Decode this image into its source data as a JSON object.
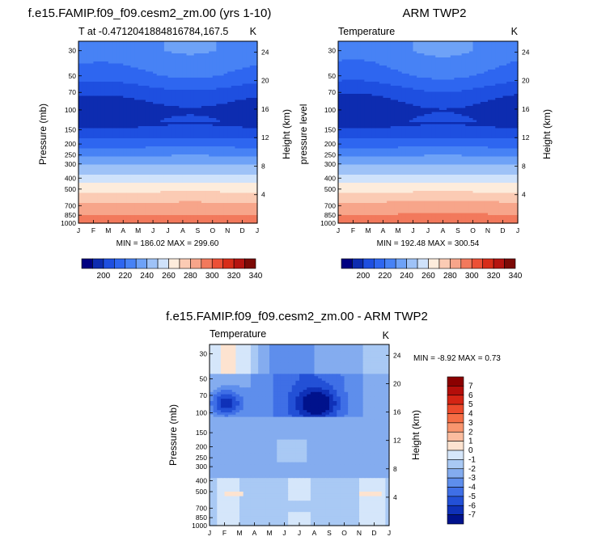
{
  "page": {
    "top_left_title": "f.e15.FAMIP.f09_f09.cesm2_zm.00 (yrs 1-10)",
    "top_right_title": "ARM TWP2",
    "bottom_title": "f.e15.FAMIP.f09_f09.cesm2_zm.00 - ARM TWP2"
  },
  "chart_data": [
    {
      "type": "heatmap",
      "id": "model",
      "subtitle_left": "T at -0.4712041884816784,167.5",
      "units": "K",
      "xlabel": "",
      "ylabel": "Pressure (mb)",
      "ylabel_right": "Height (km)",
      "x_ticks": [
        "J",
        "F",
        "M",
        "A",
        "M",
        "J",
        "J",
        "A",
        "S",
        "O",
        "N",
        "D",
        "J"
      ],
      "y_ticks": [
        30,
        50,
        70,
        100,
        150,
        200,
        250,
        300,
        400,
        500,
        700,
        850,
        1000
      ],
      "y_ticks_right": [
        24,
        20,
        16,
        12,
        8,
        4
      ],
      "stats": "MIN = 186.02 MAX = 299.60",
      "color_levels": [
        190,
        200,
        210,
        220,
        230,
        240,
        250,
        260,
        270,
        280,
        290,
        300,
        310,
        320,
        330,
        340,
        350
      ],
      "colorbar_labels": [
        "200",
        "220",
        "240",
        "260",
        "280",
        "300",
        "320",
        "340"
      ],
      "colorbar_colors": [
        "#000080",
        "#0d2cb0",
        "#1e4fe0",
        "#2e66f0",
        "#4782f5",
        "#6ea2f7",
        "#9ec2f7",
        "#cfe2fb",
        "#fdecdc",
        "#fbcbb4",
        "#f7a58a",
        "#f2795c",
        "#ec5036",
        "#d72d19",
        "#b51410",
        "#7c0a06"
      ],
      "profiles": {
        "pressure": [
          30,
          50,
          70,
          100,
          150,
          200,
          250,
          300,
          400,
          500,
          700,
          850,
          1000
        ],
        "temperature": [
          228,
          218,
          205,
          195,
          201,
          216,
          229,
          239,
          254,
          267,
          283,
          290,
          297
        ]
      }
    },
    {
      "type": "heatmap",
      "id": "obs",
      "subtitle_left": "Temperature",
      "units": "K",
      "ylabel": "pressure level",
      "ylabel_right": "Height (km)",
      "x_ticks": [
        "J",
        "F",
        "M",
        "A",
        "M",
        "J",
        "J",
        "A",
        "S",
        "O",
        "N",
        "D",
        "J"
      ],
      "y_ticks": [
        30,
        50,
        70,
        100,
        150,
        200,
        250,
        300,
        400,
        500,
        700,
        850,
        1000
      ],
      "y_ticks_right": [
        24,
        20,
        16,
        12,
        8,
        4
      ],
      "stats": "MIN = 192.48 MAX = 300.54",
      "colorbar_labels": [
        "200",
        "220",
        "240",
        "260",
        "280",
        "300",
        "320",
        "340"
      ],
      "colorbar_colors": [
        "#000080",
        "#0d2cb0",
        "#1e4fe0",
        "#2e66f0",
        "#4782f5",
        "#6ea2f7",
        "#9ec2f7",
        "#cfe2fb",
        "#fdecdc",
        "#fbcbb4",
        "#f7a58a",
        "#f2795c",
        "#ec5036",
        "#d72d19",
        "#b51410",
        "#7c0a06"
      ]
    },
    {
      "type": "heatmap",
      "id": "diff",
      "subtitle_left": "Temperature",
      "units": "K",
      "ylabel": "Pressure (mb)",
      "ylabel_right": "Height (km)",
      "x_ticks": [
        "J",
        "F",
        "M",
        "A",
        "M",
        "J",
        "J",
        "A",
        "S",
        "O",
        "N",
        "D",
        "J"
      ],
      "y_ticks": [
        30,
        50,
        70,
        100,
        150,
        200,
        250,
        300,
        400,
        500,
        700,
        850,
        1000
      ],
      "y_ticks_right": [
        24,
        20,
        16,
        12,
        8,
        4
      ],
      "stats": "MIN = -8.92 MAX =   0.73",
      "colorbar_labels": [
        "7",
        "6",
        "5",
        "4",
        "3",
        "2",
        "1",
        "0",
        "-1",
        "-2",
        "-3",
        "-4",
        "-5",
        "-6",
        "-7"
      ],
      "colorbar_colors": [
        "#8b0000",
        "#b40e0a",
        "#d42414",
        "#ec4a2c",
        "#f56d45",
        "#f9956e",
        "#fbbc9e",
        "#fde3d0",
        "#d5e6fa",
        "#a9c9f4",
        "#84acef",
        "#5e8eec",
        "#3f6fe6",
        "#2350d6",
        "#0f31b8",
        "#00128c"
      ]
    }
  ]
}
